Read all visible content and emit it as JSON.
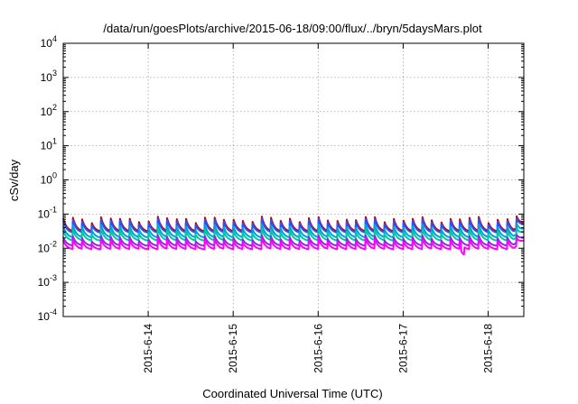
{
  "chart_data": {
    "type": "line",
    "title": "/data/run/goesPlots/archive/2015-06-18/09:00/flux/../bryn/5daysMars.plot",
    "xlabel": "Coordinated Universal Time (UTC)",
    "ylabel": "cSv/day",
    "yscale": "log",
    "ylim_exponents": [
      -4,
      4
    ],
    "y_ticks": [
      {
        "base": "10",
        "exp": "-4"
      },
      {
        "base": "10",
        "exp": "-3"
      },
      {
        "base": "10",
        "exp": "-2"
      },
      {
        "base": "10",
        "exp": "-1"
      },
      {
        "base": "10",
        "exp": "0"
      },
      {
        "base": "10",
        "exp": "1"
      },
      {
        "base": "10",
        "exp": "2"
      },
      {
        "base": "10",
        "exp": "3"
      },
      {
        "base": "10",
        "exp": "4"
      }
    ],
    "xlim_days": [
      13.0,
      18.42
    ],
    "x_ticks": [
      "2015-6-14",
      "2015-6-15",
      "2015-6-16",
      "2015-6-17",
      "2015-6-18"
    ],
    "x_tick_days": [
      14,
      15,
      16,
      17,
      18
    ],
    "grid": true,
    "pattern": "sawtooth: sharp rise then gradual decay, roughly 9 cycles per day",
    "series": [
      {
        "color": "#cc0000",
        "peak": 0.075,
        "trough": 0.032
      },
      {
        "color": "#2255ff",
        "peak": 0.065,
        "trough": 0.029
      },
      {
        "color": "#00a0e0",
        "peak": 0.045,
        "trough": 0.021
      },
      {
        "color": "#00c8a0",
        "peak": 0.033,
        "trough": 0.017
      },
      {
        "color": "#8a2be2",
        "peak": 0.021,
        "trough": 0.012
      },
      {
        "color": "#ff00ff",
        "peak": 0.017,
        "trough": 0.0095
      }
    ]
  }
}
